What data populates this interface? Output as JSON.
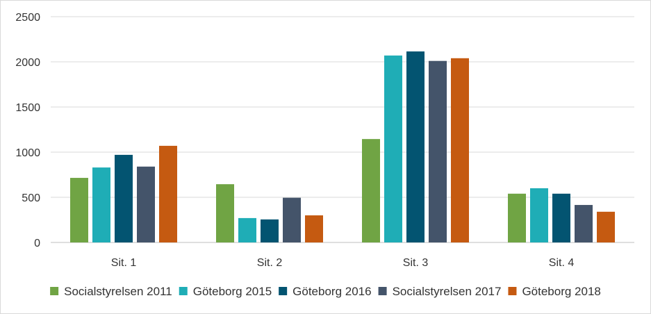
{
  "chart_data": {
    "type": "bar",
    "categories": [
      "Sit. 1",
      "Sit. 2",
      "Sit. 3",
      "Sit. 4"
    ],
    "series": [
      {
        "name": "Socialstyrelsen 2011",
        "color": "#70a444",
        "values": [
          715,
          645,
          1145,
          540
        ]
      },
      {
        "name": "Göteborg 2015",
        "color": "#1fadb6",
        "values": [
          830,
          270,
          2070,
          600
        ]
      },
      {
        "name": "Göteborg 2016",
        "color": "#035471",
        "values": [
          970,
          255,
          2115,
          540
        ]
      },
      {
        "name": "Socialstyrelsen 2017",
        "color": "#44546a",
        "values": [
          840,
          495,
          2010,
          415
        ]
      },
      {
        "name": "Göteborg 2018",
        "color": "#c55a11",
        "values": [
          1070,
          300,
          2040,
          340
        ]
      }
    ],
    "yticks": [
      "0",
      "500",
      "1000",
      "1500",
      "2000",
      "2500"
    ],
    "ylim": [
      0,
      2500
    ],
    "grid": true,
    "legend_position": "bottom"
  }
}
